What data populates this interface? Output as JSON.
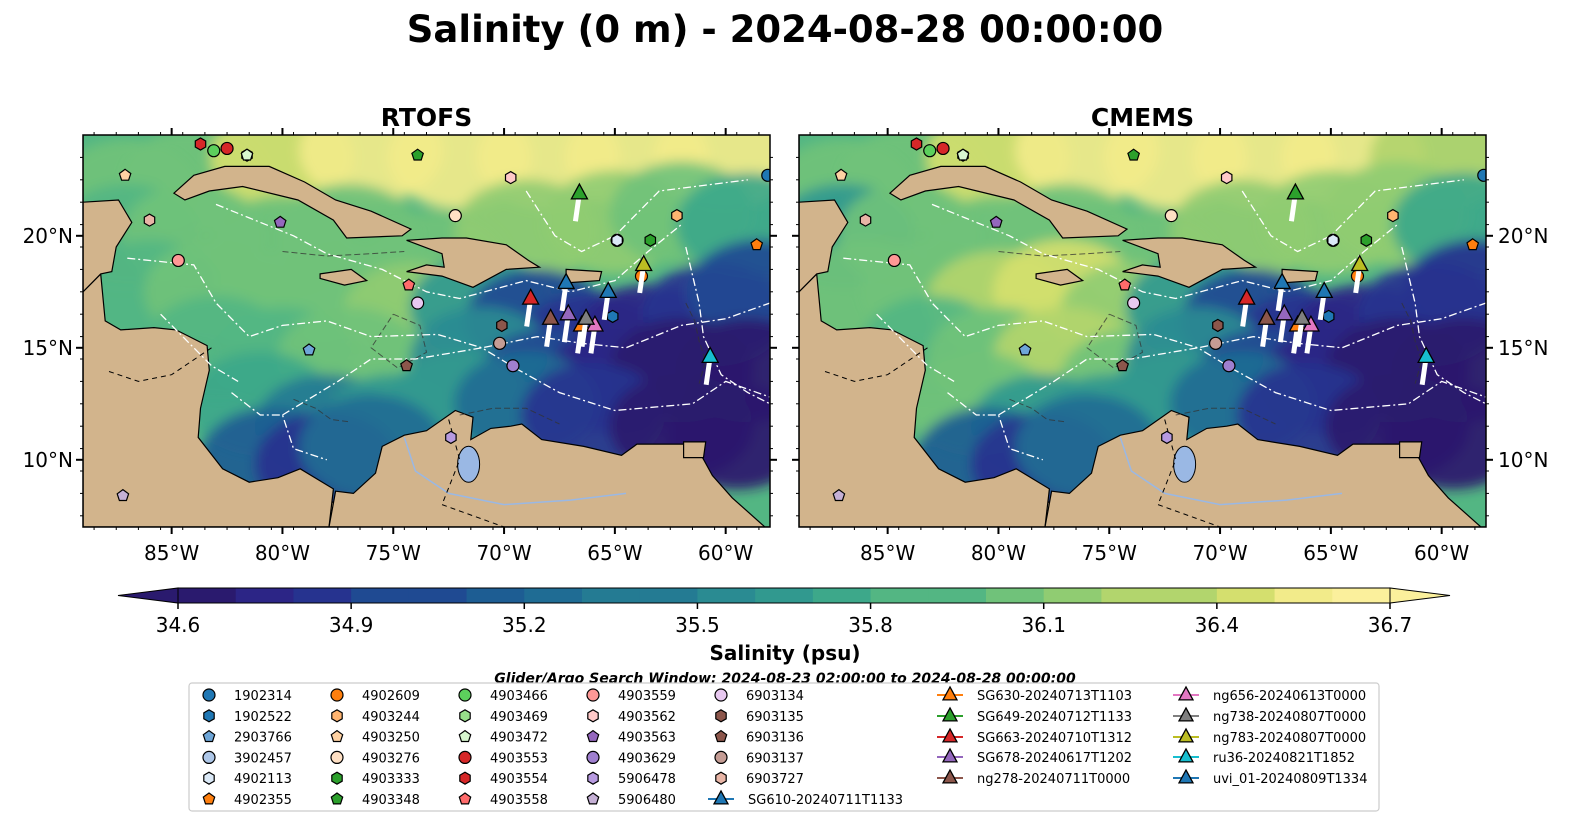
{
  "figure": {
    "title": "Salinity (0 m) - 2024-08-28 00:00:00",
    "search_window": "Glider/Argo Search Window: 2024-08-23 02:00:00 to 2024-08-28 00:00:00"
  },
  "colors": {
    "land": "#d2b48c",
    "lake": "#9ab8e4",
    "river": "#9ab8e4",
    "eez": "#ffffff",
    "contour": "#333333",
    "deep": "#2a1a6e",
    "scale": [
      "#2a1a6e",
      "#2c2586",
      "#26338f",
      "#1f4a92",
      "#1d5d93",
      "#1f6c94",
      "#247b93",
      "#2a8b92",
      "#31998f",
      "#3da88a",
      "#53b683",
      "#70c27a",
      "#90cc72",
      "#b2d56d",
      "#d4df6e",
      "#f2eb8a",
      "#fbf09c"
    ]
  },
  "chart_data": {
    "type": "heatmap",
    "variable": "Salinity",
    "units": "psu",
    "colorbar": {
      "label": "Salinity (psu)",
      "min": 34.6,
      "max": 36.7,
      "ticks": [
        "34.6",
        "34.9",
        "35.2",
        "35.5",
        "35.8",
        "36.1",
        "36.4",
        "36.7"
      ],
      "extend": "both"
    },
    "lon_range": [
      -89,
      -58
    ],
    "lat_range": [
      7,
      24.5
    ],
    "lon_ticks": [
      -85,
      -80,
      -75,
      -70,
      -65,
      -60
    ],
    "lon_tick_labels": [
      "85°W",
      "80°W",
      "75°W",
      "70°W",
      "65°W",
      "60°W"
    ],
    "lat_ticks": [
      10,
      15,
      20
    ],
    "lat_tick_labels": [
      "10°N",
      "15°N",
      "20°N"
    ],
    "panels": [
      {
        "title": "RTOFS",
        "model": "rtofs"
      },
      {
        "title": "CMEMS",
        "model": "cmems"
      }
    ],
    "argo_floats": [
      {
        "id": "1902314",
        "lon": -58.1,
        "lat": 22.7,
        "marker": "circle",
        "color": "#1f77b4"
      },
      {
        "id": "1902522",
        "lon": -65.1,
        "lat": 16.4,
        "marker": "hexagon",
        "color": "#1f77b4"
      },
      {
        "id": "2903766",
        "lon": -78.8,
        "lat": 14.9,
        "marker": "pentagon",
        "color": "#6ea6d8"
      },
      {
        "id": "3902457",
        "lon": -64.9,
        "lat": 19.8,
        "marker": "circle",
        "color": "#aec7e8"
      },
      {
        "id": "4902113",
        "lon": -64.9,
        "lat": 19.8,
        "marker": "hexagon",
        "color": "#dbe9f7"
      },
      {
        "id": "4902355",
        "lon": -58.6,
        "lat": 19.6,
        "marker": "pentagon",
        "color": "#ff7f0e"
      },
      {
        "id": "4902609",
        "lon": -63.8,
        "lat": 18.2,
        "marker": "circle",
        "color": "#ff7f0e"
      },
      {
        "id": "4903244",
        "lon": -62.2,
        "lat": 20.9,
        "marker": "hexagon",
        "color": "#ffb470"
      },
      {
        "id": "4903250",
        "lon": -87.1,
        "lat": 22.7,
        "marker": "pentagon",
        "color": "#ffd2a3"
      },
      {
        "id": "4903276",
        "lon": -72.2,
        "lat": 20.9,
        "marker": "circle",
        "color": "#ffe0c4"
      },
      {
        "id": "4903333",
        "lon": -63.4,
        "lat": 19.8,
        "marker": "hexagon",
        "color": "#2ca02c"
      },
      {
        "id": "4903348",
        "lon": -73.9,
        "lat": 23.6,
        "marker": "pentagon",
        "color": "#2ca02c"
      },
      {
        "id": "4903466",
        "lon": -83.1,
        "lat": 23.8,
        "marker": "circle",
        "color": "#5ccf5c"
      },
      {
        "id": "4903469",
        "lon": -81.6,
        "lat": 23.6,
        "marker": "hexagon",
        "color": "#98df8a"
      },
      {
        "id": "4903472",
        "lon": -81.6,
        "lat": 23.6,
        "marker": "pentagon",
        "color": "#d8f7cf"
      },
      {
        "id": "4903553",
        "lon": -82.5,
        "lat": 23.9,
        "marker": "circle",
        "color": "#d62728"
      },
      {
        "id": "4903554",
        "lon": -83.7,
        "lat": 24.1,
        "marker": "hexagon",
        "color": "#d62728"
      },
      {
        "id": "4903558",
        "lon": -74.3,
        "lat": 17.8,
        "marker": "pentagon",
        "color": "#ff6b6b"
      },
      {
        "id": "4903559",
        "lon": -84.7,
        "lat": 18.9,
        "marker": "circle",
        "color": "#ff9896"
      },
      {
        "id": "4903562",
        "lon": -69.7,
        "lat": 22.6,
        "marker": "hexagon",
        "color": "#ffc9c8"
      },
      {
        "id": "4903563",
        "lon": -80.1,
        "lat": 20.6,
        "marker": "pentagon",
        "color": "#9467bd"
      },
      {
        "id": "4903629",
        "lon": -69.6,
        "lat": 14.2,
        "marker": "circle",
        "color": "#9f7fcf"
      },
      {
        "id": "5906478",
        "lon": -72.4,
        "lat": 11.0,
        "marker": "hexagon",
        "color": "#b79ae0"
      },
      {
        "id": "5906480",
        "lon": -87.2,
        "lat": 8.4,
        "marker": "pentagon",
        "color": "#c5b0d5"
      },
      {
        "id": "6903134",
        "lon": -73.9,
        "lat": 17.0,
        "marker": "circle",
        "color": "#e8c8f0"
      },
      {
        "id": "6903135",
        "lon": -70.1,
        "lat": 16.0,
        "marker": "hexagon",
        "color": "#8c564b"
      },
      {
        "id": "6903136",
        "lon": -74.4,
        "lat": 14.2,
        "marker": "pentagon",
        "color": "#8c564b"
      },
      {
        "id": "6903137",
        "lon": -70.2,
        "lat": 15.2,
        "marker": "circle",
        "color": "#c49c94"
      },
      {
        "id": "6903727",
        "lon": -86.0,
        "lat": 20.7,
        "marker": "hexagon",
        "color": "#e8b5a6"
      }
    ],
    "gliders": [
      {
        "id": "SG610-20240711T1133",
        "lon": -67.2,
        "lat": 17.9,
        "color": "#1f77b4"
      },
      {
        "id": "SG630-20240713T1103",
        "lon": -66.5,
        "lat": 16.0,
        "color": "#ff7f0e"
      },
      {
        "id": "SG649-20240712T1133",
        "lon": -66.6,
        "lat": 21.9,
        "color": "#2ca02c"
      },
      {
        "id": "SG663-20240710T1312",
        "lon": -68.8,
        "lat": 17.2,
        "color": "#d62728"
      },
      {
        "id": "SG678-20240617T1202",
        "lon": -67.1,
        "lat": 16.5,
        "color": "#9467bd"
      },
      {
        "id": "ng278-20240711T0000",
        "lon": -67.9,
        "lat": 16.3,
        "color": "#8c564b"
      },
      {
        "id": "ng656-20240613T0000",
        "lon": -65.9,
        "lat": 16.0,
        "color": "#e377c2"
      },
      {
        "id": "ng738-20240807T0000",
        "lon": -66.3,
        "lat": 16.3,
        "color": "#7f7f7f"
      },
      {
        "id": "ng783-20240807T0000",
        "lon": -63.7,
        "lat": 18.7,
        "color": "#bcbd22"
      },
      {
        "id": "ru36-20240821T1852",
        "lon": -60.7,
        "lat": 14.6,
        "color": "#17becf"
      },
      {
        "id": "uvi_01-20240809T1334",
        "lon": -65.3,
        "lat": 17.5,
        "color": "#1f77b4"
      }
    ]
  }
}
